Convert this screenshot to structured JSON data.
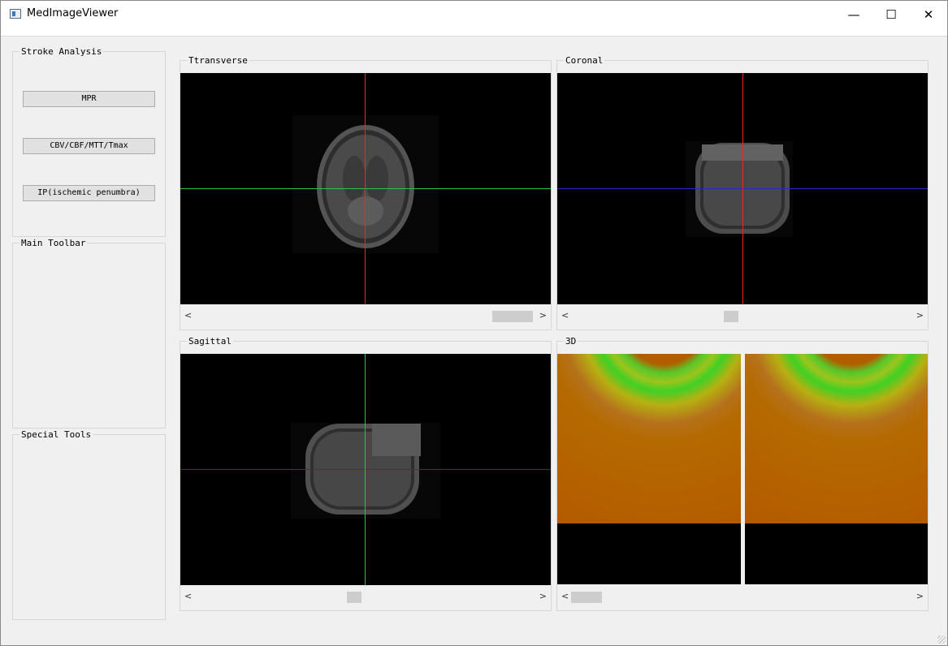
{
  "window": {
    "title": "MedImageViewer",
    "minimize": "—",
    "maximize": "☐",
    "close": "✕"
  },
  "sidebar": {
    "stroke_analysis": {
      "title": "Stroke Analysis",
      "buttons": [
        "MPR",
        "CBV/CBF/MTT/Tmax",
        "IP(ischemic penumbra)"
      ]
    },
    "main_toolbar": {
      "title": "Main Toolbar"
    },
    "special_tools": {
      "title": "Special Tools"
    }
  },
  "views": {
    "transverse": {
      "title": "Ttransverse"
    },
    "coronal": {
      "title": "Coronal"
    },
    "sagittal": {
      "title": "Sagittal"
    },
    "three_d": {
      "title": "3D"
    }
  },
  "scroll": {
    "left_arrow": "<",
    "right_arrow": ">"
  },
  "colors": {
    "crosshair_red": "#ff2020",
    "crosshair_green": "#22c84a",
    "crosshair_blue": "#1a2bd6",
    "volume_orange": "#b45a00",
    "volume_green": "#4ad12a"
  }
}
